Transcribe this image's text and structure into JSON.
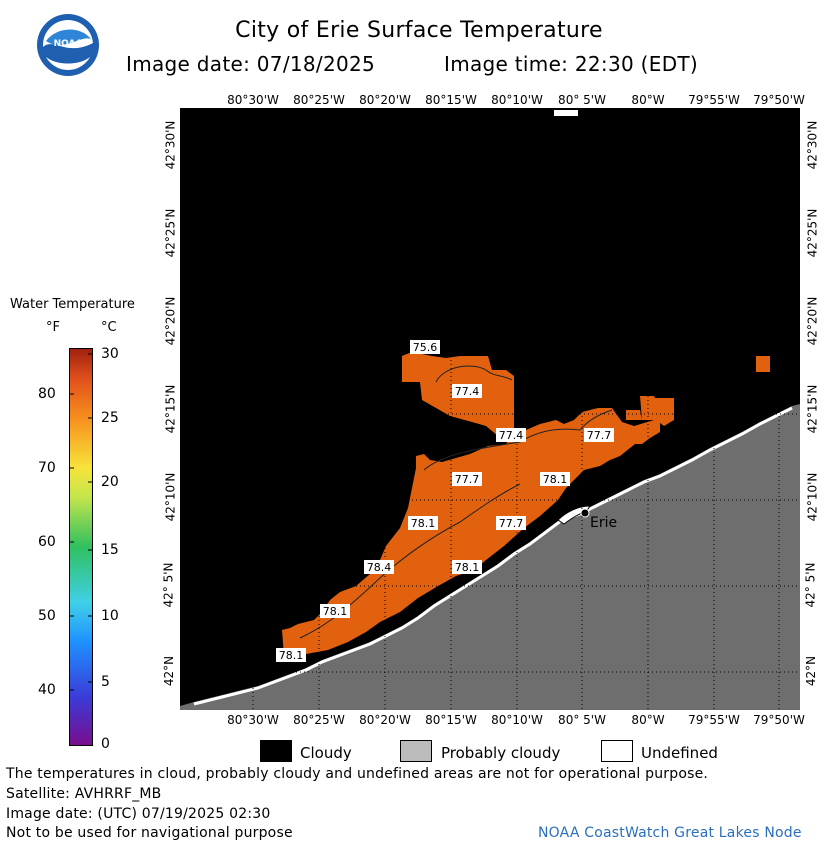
{
  "header": {
    "title": "City of Erie Surface Temperature",
    "image_date": "Image date: 07/18/2025",
    "image_time": "Image time: 22:30 (EDT)",
    "logo_text": "NOAA"
  },
  "axes": {
    "top_longitude_labels": [
      "80°30'W",
      "80°25'W",
      "80°20'W",
      "80°15'W",
      "80°10'W",
      "80° 5'W",
      "80°W",
      "79°55'W",
      "79°50'W"
    ],
    "bottom_longitude_labels": [
      "80°30'W",
      "80°25'W",
      "80°20'W",
      "80°15'W",
      "80°10'W",
      "80° 5'W",
      "80°W",
      "79°55'W",
      "79°50'W"
    ],
    "latitude_labels": [
      "42°30'N",
      "42°25'N",
      "42°20'N",
      "42°15'N",
      "42°10'N",
      "42° 5'N",
      "42°N"
    ]
  },
  "map": {
    "city_label": "Erie",
    "temperature_labels": [
      {
        "value": "75.6"
      },
      {
        "value": "77.4"
      },
      {
        "value": "77.4"
      },
      {
        "value": "77.7"
      },
      {
        "value": "77.7"
      },
      {
        "value": "78.1"
      },
      {
        "value": "78.1"
      },
      {
        "value": "77.7"
      },
      {
        "value": "78.4"
      },
      {
        "value": "78.1"
      },
      {
        "value": "78.1"
      },
      {
        "value": "78.1"
      }
    ],
    "colors": {
      "cloud": "#000000",
      "probably_cloudy": "#6e6e6e",
      "water_warm": "#e2610f",
      "water_cool": "#ea6d12"
    }
  },
  "legend": {
    "title": "Water Temperature",
    "unit_f": "°F",
    "unit_c": "°C",
    "f_ticks": [
      "80",
      "70",
      "60",
      "50",
      "40"
    ],
    "c_ticks": [
      "30",
      "25",
      "20",
      "15",
      "10",
      "5",
      "0"
    ]
  },
  "key": {
    "cloudy": "Cloudy",
    "probably_cloudy": "Probably cloudy",
    "undefined": "Undefined"
  },
  "footer": {
    "line1": "The temperatures in cloud, probably cloudy and undefined areas are not for operational purpose.",
    "line2": "Satellite: AVHRRF_MB",
    "line3": "Image date: (UTC) 07/19/2025  02:30",
    "line4": "Not to be used for navigational purpose",
    "credit": "NOAA CoastWatch Great Lakes Node"
  }
}
